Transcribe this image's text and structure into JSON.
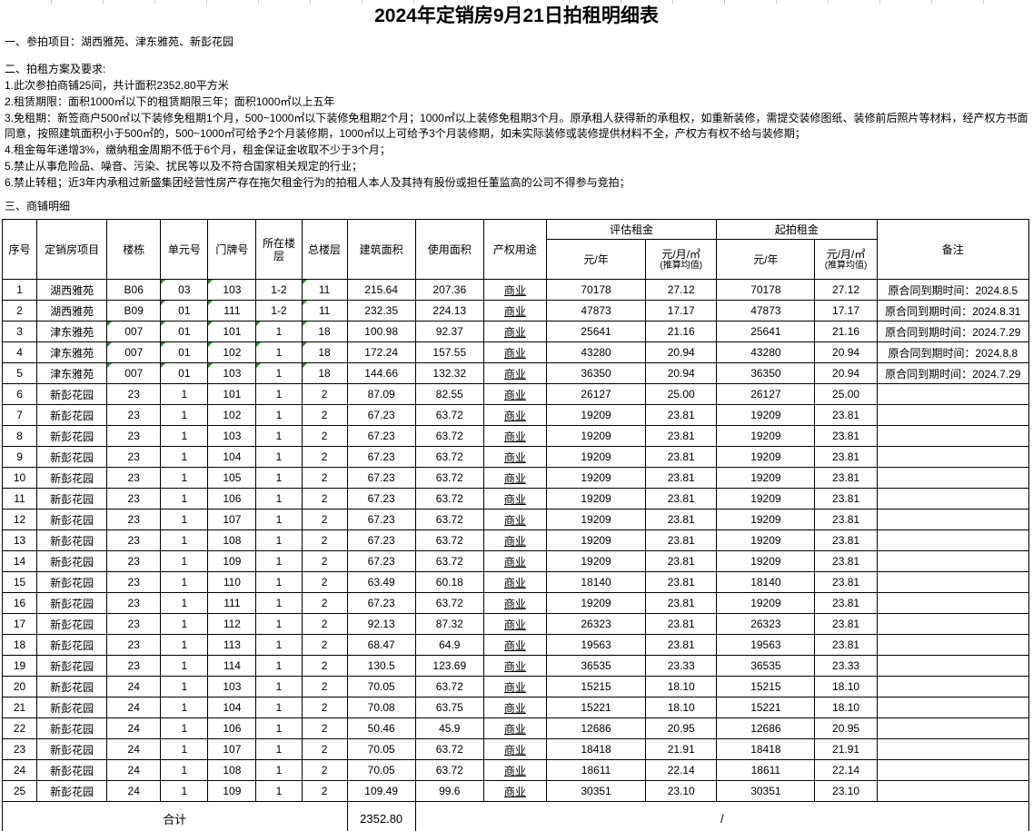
{
  "colors": {
    "indicator_green": "#2e8b2e"
  },
  "page": {
    "title": "2024年定销房9月21日拍租明细表"
  },
  "intro": {
    "section1": "一、参拍项目：湖西雅苑、津东雅苑、新彭花园",
    "section2_heading": "二、拍租方案及要求:",
    "requirements": [
      "1.此次参拍商铺25间，共计面积2352.80平方米",
      "2.租赁期限：面积1000㎡以下的租赁期限三年；面积1000㎡以上五年",
      "3.免租期：新签商户500㎡以下装修免租期1个月，500~1000㎡以下装修免租期2个月；1000㎡以上装修免租期3个月。原承租人获得新的承租权，如重新装修，需提交装修图纸、装修前后照片等材料，经产权方书面同意，按照建筑面积小于500㎡的，500~1000㎡可给予2个月装修期，1000㎡以上可给予3个月装修期，如未实际装修或装修提供材料不全，产权方有权不给与装修期；",
      "4.租金每年递增3%，缴纳租金周期不低于6个月，租金保证金收取不少于3个月；",
      "5.禁止从事危险品、噪音、污染、扰民等以及不符合国家相关规定的行业；",
      "6.禁止转租；近3年内承租过新盛集团经营性房产存在拖欠租金行为的拍租人本人及其持有股份或担任董监高的公司不得参与竞拍；"
    ],
    "section3_heading": "三、商铺明细"
  },
  "table": {
    "columns": [
      "序号",
      "定销房项目",
      "楼栋",
      "单元号",
      "门牌号",
      "所在楼层",
      "总楼层",
      "建筑面积",
      "使用面积",
      "产权用途"
    ],
    "groups": {
      "eval": "评估租金",
      "start": "起拍租金"
    },
    "subcols": {
      "year": "元/年",
      "avg": "元/月/㎡",
      "avg_note": "(推算均值)"
    },
    "remark_header": "备注",
    "rows": [
      {
        "no": "1",
        "project": "湖西雅苑",
        "building": "B06",
        "unit": "03",
        "door": "103",
        "floor": "1-2",
        "floors": "11",
        "build_area": "215.64",
        "use_area": "207.36",
        "usage": "商业",
        "eval_year": "70178",
        "eval_avg": "27.12",
        "start_year": "70178",
        "start_avg": "27.12",
        "remark": "原合同到期时间：2024.8.5",
        "flags": [
          "unit",
          "door",
          "floors"
        ]
      },
      {
        "no": "2",
        "project": "湖西雅苑",
        "building": "B09",
        "unit": "01",
        "door": "111",
        "floor": "1-2",
        "floors": "11",
        "build_area": "232.35",
        "use_area": "224.13",
        "usage": "商业",
        "eval_year": "47873",
        "eval_avg": "17.17",
        "start_year": "47873",
        "start_avg": "17.17",
        "remark": "原合同到期时间：2024.8.31",
        "flags": [
          "unit",
          "door",
          "floors"
        ]
      },
      {
        "no": "3",
        "project": "津东雅苑",
        "building": "007",
        "unit": "01",
        "door": "101",
        "floor": "1",
        "floors": "18",
        "build_area": "100.98",
        "use_area": "92.37",
        "usage": "商业",
        "eval_year": "25641",
        "eval_avg": "21.16",
        "start_year": "25641",
        "start_avg": "21.16",
        "remark": "原合同到期时间：2024.7.29",
        "flags": [
          "building",
          "unit",
          "door",
          "floor",
          "floors"
        ]
      },
      {
        "no": "4",
        "project": "津东雅苑",
        "building": "007",
        "unit": "01",
        "door": "102",
        "floor": "1",
        "floors": "18",
        "build_area": "172.24",
        "use_area": "157.55",
        "usage": "商业",
        "eval_year": "43280",
        "eval_avg": "20.94",
        "start_year": "43280",
        "start_avg": "20.94",
        "remark": "原合同到期时间：2024.8.8",
        "flags": [
          "building",
          "unit",
          "door",
          "floor",
          "floors"
        ]
      },
      {
        "no": "5",
        "project": "津东雅苑",
        "building": "007",
        "unit": "01",
        "door": "103",
        "floor": "1",
        "floors": "18",
        "build_area": "144.66",
        "use_area": "132.32",
        "usage": "商业",
        "eval_year": "36350",
        "eval_avg": "20.94",
        "start_year": "36350",
        "start_avg": "20.94",
        "remark": "原合同到期时间：2024.7.29",
        "flags": [
          "building",
          "unit",
          "door",
          "floor",
          "floors"
        ]
      },
      {
        "no": "6",
        "project": "新彭花园",
        "building": "23",
        "unit": "1",
        "door": "101",
        "floor": "1",
        "floors": "2",
        "build_area": "87.09",
        "use_area": "82.55",
        "usage": "商业",
        "eval_year": "26127",
        "eval_avg": "25.00",
        "start_year": "26127",
        "start_avg": "25.00",
        "remark": "",
        "flags": []
      },
      {
        "no": "7",
        "project": "新彭花园",
        "building": "23",
        "unit": "1",
        "door": "102",
        "floor": "1",
        "floors": "2",
        "build_area": "67.23",
        "use_area": "63.72",
        "usage": "商业",
        "eval_year": "19209",
        "eval_avg": "23.81",
        "start_year": "19209",
        "start_avg": "23.81",
        "remark": "",
        "flags": []
      },
      {
        "no": "8",
        "project": "新彭花园",
        "building": "23",
        "unit": "1",
        "door": "103",
        "floor": "1",
        "floors": "2",
        "build_area": "67.23",
        "use_area": "63.72",
        "usage": "商业",
        "eval_year": "19209",
        "eval_avg": "23.81",
        "start_year": "19209",
        "start_avg": "23.81",
        "remark": "",
        "flags": []
      },
      {
        "no": "9",
        "project": "新彭花园",
        "building": "23",
        "unit": "1",
        "door": "104",
        "floor": "1",
        "floors": "2",
        "build_area": "67.23",
        "use_area": "63.72",
        "usage": "商业",
        "eval_year": "19209",
        "eval_avg": "23.81",
        "start_year": "19209",
        "start_avg": "23.81",
        "remark": "",
        "flags": []
      },
      {
        "no": "10",
        "project": "新彭花园",
        "building": "23",
        "unit": "1",
        "door": "105",
        "floor": "1",
        "floors": "2",
        "build_area": "67.23",
        "use_area": "63.72",
        "usage": "商业",
        "eval_year": "19209",
        "eval_avg": "23.81",
        "start_year": "19209",
        "start_avg": "23.81",
        "remark": "",
        "flags": []
      },
      {
        "no": "11",
        "project": "新彭花园",
        "building": "23",
        "unit": "1",
        "door": "106",
        "floor": "1",
        "floors": "2",
        "build_area": "67.23",
        "use_area": "63.72",
        "usage": "商业",
        "eval_year": "19209",
        "eval_avg": "23.81",
        "start_year": "19209",
        "start_avg": "23.81",
        "remark": "",
        "flags": []
      },
      {
        "no": "12",
        "project": "新彭花园",
        "building": "23",
        "unit": "1",
        "door": "107",
        "floor": "1",
        "floors": "2",
        "build_area": "67.23",
        "use_area": "63.72",
        "usage": "商业",
        "eval_year": "19209",
        "eval_avg": "23.81",
        "start_year": "19209",
        "start_avg": "23.81",
        "remark": "",
        "flags": []
      },
      {
        "no": "13",
        "project": "新彭花园",
        "building": "23",
        "unit": "1",
        "door": "108",
        "floor": "1",
        "floors": "2",
        "build_area": "67.23",
        "use_area": "63.72",
        "usage": "商业",
        "eval_year": "19209",
        "eval_avg": "23.81",
        "start_year": "19209",
        "start_avg": "23.81",
        "remark": "",
        "flags": []
      },
      {
        "no": "14",
        "project": "新彭花园",
        "building": "23",
        "unit": "1",
        "door": "109",
        "floor": "1",
        "floors": "2",
        "build_area": "67.23",
        "use_area": "63.72",
        "usage": "商业",
        "eval_year": "19209",
        "eval_avg": "23.81",
        "start_year": "19209",
        "start_avg": "23.81",
        "remark": "",
        "flags": []
      },
      {
        "no": "15",
        "project": "新彭花园",
        "building": "23",
        "unit": "1",
        "door": "110",
        "floor": "1",
        "floors": "2",
        "build_area": "63.49",
        "use_area": "60.18",
        "usage": "商业",
        "eval_year": "18140",
        "eval_avg": "23.81",
        "start_year": "18140",
        "start_avg": "23.81",
        "remark": "",
        "flags": []
      },
      {
        "no": "16",
        "project": "新彭花园",
        "building": "23",
        "unit": "1",
        "door": "111",
        "floor": "1",
        "floors": "2",
        "build_area": "67.23",
        "use_area": "63.72",
        "usage": "商业",
        "eval_year": "19209",
        "eval_avg": "23.81",
        "start_year": "19209",
        "start_avg": "23.81",
        "remark": "",
        "flags": []
      },
      {
        "no": "17",
        "project": "新彭花园",
        "building": "23",
        "unit": "1",
        "door": "112",
        "floor": "1",
        "floors": "2",
        "build_area": "92.13",
        "use_area": "87.32",
        "usage": "商业",
        "eval_year": "26323",
        "eval_avg": "23.81",
        "start_year": "26323",
        "start_avg": "23.81",
        "remark": "",
        "flags": []
      },
      {
        "no": "18",
        "project": "新彭花园",
        "building": "23",
        "unit": "1",
        "door": "113",
        "floor": "1",
        "floors": "2",
        "build_area": "68.47",
        "use_area": "64.9",
        "usage": "商业",
        "eval_year": "19563",
        "eval_avg": "23.81",
        "start_year": "19563",
        "start_avg": "23.81",
        "remark": "",
        "flags": []
      },
      {
        "no": "19",
        "project": "新彭花园",
        "building": "23",
        "unit": "1",
        "door": "114",
        "floor": "1",
        "floors": "2",
        "build_area": "130.5",
        "use_area": "123.69",
        "usage": "商业",
        "eval_year": "36535",
        "eval_avg": "23.33",
        "start_year": "36535",
        "start_avg": "23.33",
        "remark": "",
        "flags": []
      },
      {
        "no": "20",
        "project": "新彭花园",
        "building": "24",
        "unit": "1",
        "door": "103",
        "floor": "1",
        "floors": "2",
        "build_area": "70.05",
        "use_area": "63.72",
        "usage": "商业",
        "eval_year": "15215",
        "eval_avg": "18.10",
        "start_year": "15215",
        "start_avg": "18.10",
        "remark": "",
        "flags": []
      },
      {
        "no": "21",
        "project": "新彭花园",
        "building": "24",
        "unit": "1",
        "door": "104",
        "floor": "1",
        "floors": "2",
        "build_area": "70.08",
        "use_area": "63.75",
        "usage": "商业",
        "eval_year": "15221",
        "eval_avg": "18.10",
        "start_year": "15221",
        "start_avg": "18.10",
        "remark": "",
        "flags": []
      },
      {
        "no": "22",
        "project": "新彭花园",
        "building": "24",
        "unit": "1",
        "door": "106",
        "floor": "1",
        "floors": "2",
        "build_area": "50.46",
        "use_area": "45.9",
        "usage": "商业",
        "eval_year": "12686",
        "eval_avg": "20.95",
        "start_year": "12686",
        "start_avg": "20.95",
        "remark": "",
        "flags": []
      },
      {
        "no": "23",
        "project": "新彭花园",
        "building": "24",
        "unit": "1",
        "door": "107",
        "floor": "1",
        "floors": "2",
        "build_area": "70.05",
        "use_area": "63.72",
        "usage": "商业",
        "eval_year": "18418",
        "eval_avg": "21.91",
        "start_year": "18418",
        "start_avg": "21.91",
        "remark": "",
        "flags": []
      },
      {
        "no": "24",
        "project": "新彭花园",
        "building": "24",
        "unit": "1",
        "door": "108",
        "floor": "1",
        "floors": "2",
        "build_area": "70.05",
        "use_area": "63.72",
        "usage": "商业",
        "eval_year": "18611",
        "eval_avg": "22.14",
        "start_year": "18611",
        "start_avg": "22.14",
        "remark": "",
        "flags": []
      },
      {
        "no": "25",
        "project": "新彭花园",
        "building": "24",
        "unit": "1",
        "door": "109",
        "floor": "1",
        "floors": "2",
        "build_area": "109.49",
        "use_area": "99.6",
        "usage": "商业",
        "eval_year": "30351",
        "eval_avg": "23.10",
        "start_year": "30351",
        "start_avg": "23.10",
        "remark": "",
        "flags": []
      }
    ],
    "total": {
      "label": "合计",
      "build_area": "2352.80",
      "rest": "/"
    }
  }
}
